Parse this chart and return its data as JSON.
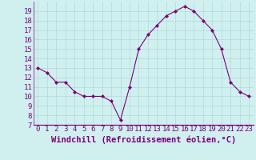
{
  "x": [
    0,
    1,
    2,
    3,
    4,
    5,
    6,
    7,
    8,
    9,
    10,
    11,
    12,
    13,
    14,
    15,
    16,
    17,
    18,
    19,
    20,
    21,
    22,
    23
  ],
  "y": [
    13,
    12.5,
    11.5,
    11.5,
    10.5,
    10,
    10,
    10,
    9.5,
    7.5,
    11,
    15,
    16.5,
    17.5,
    18.5,
    19,
    19.5,
    19,
    18,
    17,
    15,
    11.5,
    10.5,
    10
  ],
  "line_color": "#7b007b",
  "marker_color": "#7b007b",
  "bg_color": "#d0f0f0",
  "grid_color": "#b0d8d8",
  "xlabel": "Windchill (Refroidissement éolien,°C)",
  "xlabel_color": "#7b007b",
  "ylim": [
    7,
    20
  ],
  "xlim": [
    -0.5,
    23.5
  ],
  "yticks": [
    7,
    8,
    9,
    10,
    11,
    12,
    13,
    14,
    15,
    16,
    17,
    18,
    19
  ],
  "xticks": [
    0,
    1,
    2,
    3,
    4,
    5,
    6,
    7,
    8,
    9,
    10,
    11,
    12,
    13,
    14,
    15,
    16,
    17,
    18,
    19,
    20,
    21,
    22,
    23
  ],
  "tick_label_size": 6.5,
  "xlabel_size": 7.5
}
